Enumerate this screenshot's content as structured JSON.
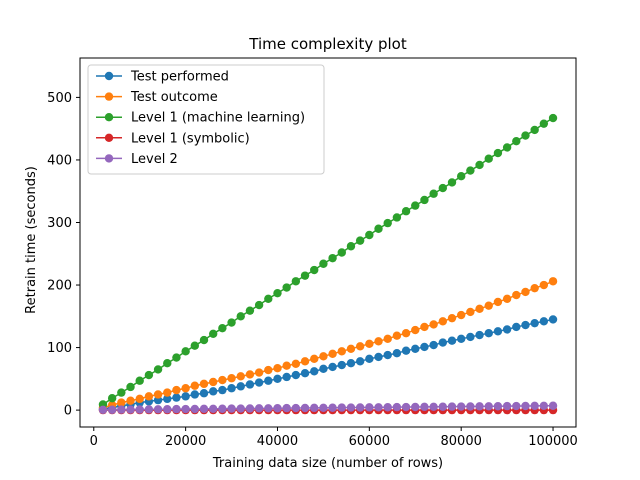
{
  "chart_data": {
    "type": "line",
    "title": "Time complexity plot",
    "xlabel": "Training data size (number of rows)",
    "ylabel": "Retrain time (seconds)",
    "xlim": [
      -3000,
      105000
    ],
    "ylim": [
      -27,
      563
    ],
    "xticks": [
      0,
      20000,
      40000,
      60000,
      80000,
      100000
    ],
    "yticks": [
      0,
      100,
      200,
      300,
      400,
      500
    ],
    "grid": false,
    "legend_position": "upper-left",
    "x": [
      2000,
      4000,
      6000,
      8000,
      10000,
      12000,
      14000,
      16000,
      18000,
      20000,
      22000,
      24000,
      26000,
      28000,
      30000,
      32000,
      34000,
      36000,
      38000,
      40000,
      42000,
      44000,
      46000,
      48000,
      50000,
      52000,
      54000,
      56000,
      58000,
      60000,
      62000,
      64000,
      66000,
      68000,
      70000,
      72000,
      74000,
      76000,
      78000,
      80000,
      82000,
      84000,
      86000,
      88000,
      90000,
      92000,
      94000,
      96000,
      98000,
      100000
    ],
    "series": [
      {
        "name": "Test performed",
        "color": "#1f77b4",
        "values": [
          2,
          4,
          7,
          9,
          12,
          14,
          16,
          18,
          20,
          22,
          25,
          27,
          30,
          32,
          35,
          38,
          41,
          44,
          47,
          50,
          53,
          56,
          59,
          62,
          66,
          69,
          72,
          75,
          78,
          82,
          85,
          88,
          91,
          95,
          98,
          101,
          104,
          108,
          111,
          114,
          117,
          120,
          123,
          126,
          129,
          133,
          136,
          139,
          142,
          145
        ]
      },
      {
        "name": "Test outcome",
        "color": "#ff7f0e",
        "values": [
          4,
          8,
          12,
          15,
          18,
          22,
          25,
          28,
          32,
          35,
          39,
          42,
          45,
          48,
          51,
          54,
          57,
          60,
          64,
          67,
          71,
          74,
          78,
          82,
          86,
          90,
          94,
          98,
          102,
          106,
          110,
          114,
          119,
          123,
          128,
          133,
          137,
          142,
          147,
          152,
          157,
          162,
          167,
          173,
          178,
          184,
          189,
          195,
          200,
          206
        ]
      },
      {
        "name": "Level 1 (machine learning)",
        "color": "#2ca02c",
        "values": [
          9,
          19,
          28,
          37,
          47,
          56,
          65,
          75,
          84,
          94,
          103,
          112,
          122,
          131,
          140,
          150,
          159,
          168,
          178,
          187,
          196,
          206,
          215,
          224,
          234,
          243,
          252,
          262,
          271,
          280,
          290,
          299,
          308,
          318,
          327,
          336,
          346,
          355,
          364,
          374,
          383,
          392,
          402,
          411,
          420,
          430,
          439,
          448,
          458,
          467
        ]
      },
      {
        "name": "Level 1 (symbolic)",
        "color": "#d62728",
        "values": [
          0,
          0,
          0,
          0,
          0,
          0,
          0,
          0,
          0,
          0,
          0,
          0,
          0,
          0,
          0,
          0,
          0,
          0,
          0,
          0,
          0,
          0,
          0,
          0,
          0,
          0,
          0,
          0,
          0,
          0,
          0,
          0,
          0,
          0,
          0,
          0,
          0,
          0,
          0,
          0,
          0,
          0,
          0,
          0,
          0,
          0,
          0,
          0,
          0,
          0
        ]
      },
      {
        "name": "Level 2",
        "color": "#9467bd",
        "values": [
          0.5,
          0.6,
          0.8,
          0.9,
          1.0,
          1.2,
          1.3,
          1.4,
          1.6,
          1.7,
          1.8,
          2.0,
          2.1,
          2.2,
          2.4,
          2.5,
          2.6,
          2.8,
          2.9,
          3.0,
          3.2,
          3.3,
          3.4,
          3.6,
          3.7,
          3.8,
          4.0,
          4.1,
          4.2,
          4.4,
          4.5,
          4.6,
          4.8,
          4.9,
          5.0,
          5.2,
          5.3,
          5.4,
          5.6,
          5.7,
          5.8,
          6.0,
          6.1,
          6.2,
          6.4,
          6.5,
          6.6,
          6.8,
          6.9,
          7.0
        ]
      }
    ]
  }
}
